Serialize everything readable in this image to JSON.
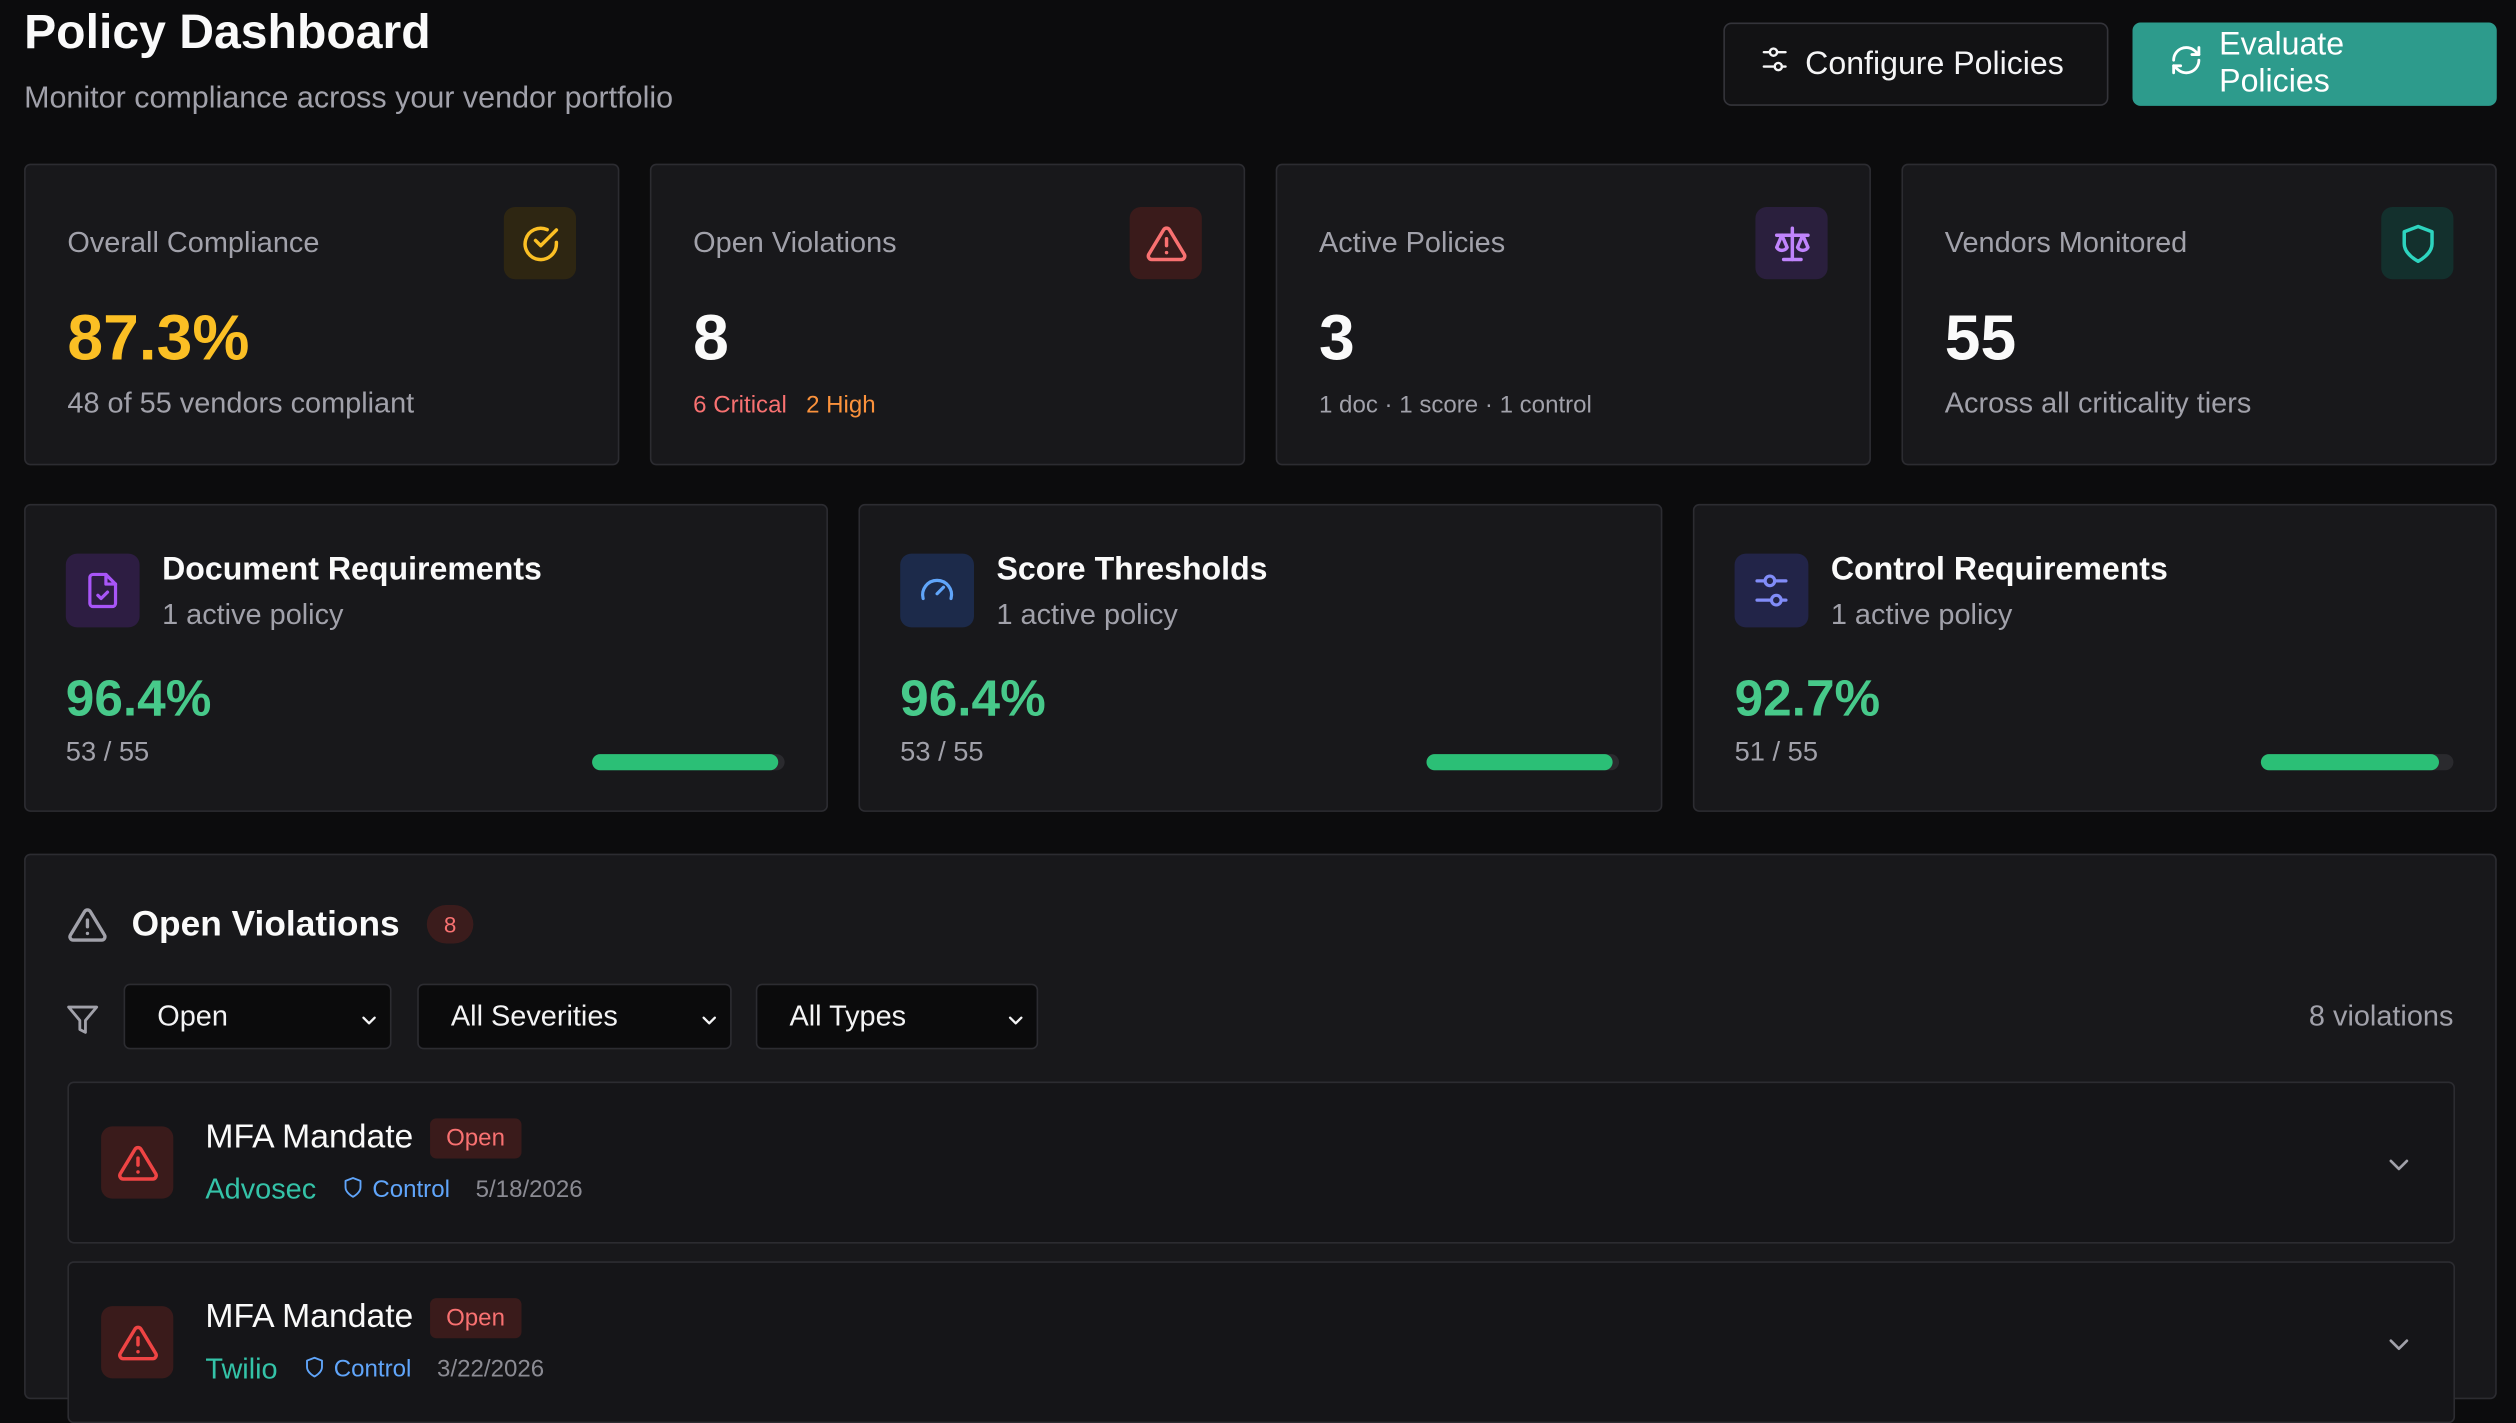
{
  "header": {
    "title": "Policy Dashboard",
    "subtitle": "Monitor compliance across your vendor portfolio",
    "configure_label": "Configure Policies",
    "evaluate_label": "Evaluate Policies"
  },
  "stats": [
    {
      "label": "Overall Compliance",
      "value": "87.3%",
      "sub": "48 of 55 vendors compliant",
      "icon": "check-circle-icon",
      "color": "#fbbf24"
    },
    {
      "label": "Open Violations",
      "value": "8",
      "critical": "6 Critical",
      "high": "2 High",
      "icon": "alert-triangle-icon",
      "color": "#f87171"
    },
    {
      "label": "Active Policies",
      "value": "3",
      "sub": "1 doc · 1 score · 1 control",
      "icon": "scale-icon",
      "color": "#c084fc"
    },
    {
      "label": "Vendors Monitored",
      "value": "55",
      "sub": "Across all criticality tiers",
      "icon": "shield-icon",
      "color": "#2dd4bf"
    }
  ],
  "categories": [
    {
      "title": "Document Requirements",
      "sub": "1 active policy",
      "pct": "96.4%",
      "count": "53 / 55",
      "progress": 0.964,
      "icon": "file-check-icon"
    },
    {
      "title": "Score Thresholds",
      "sub": "1 active policy",
      "pct": "96.4%",
      "count": "53 / 55",
      "progress": 0.964,
      "icon": "gauge-icon"
    },
    {
      "title": "Control Requirements",
      "sub": "1 active policy",
      "pct": "92.7%",
      "count": "51 / 55",
      "progress": 0.927,
      "icon": "sliders-icon"
    }
  ],
  "violations": {
    "title": "Open Violations",
    "count": "8",
    "filters": {
      "status": "Open",
      "severity": "All Severities",
      "type": "All Types"
    },
    "total_label": "8 violations",
    "items": [
      {
        "title": "MFA Mandate",
        "status": "Open",
        "vendor": "Advosec",
        "type": "Control",
        "date": "5/18/2026"
      },
      {
        "title": "MFA Mandate",
        "status": "Open",
        "vendor": "Twilio",
        "type": "Control",
        "date": "3/22/2026"
      }
    ]
  }
}
